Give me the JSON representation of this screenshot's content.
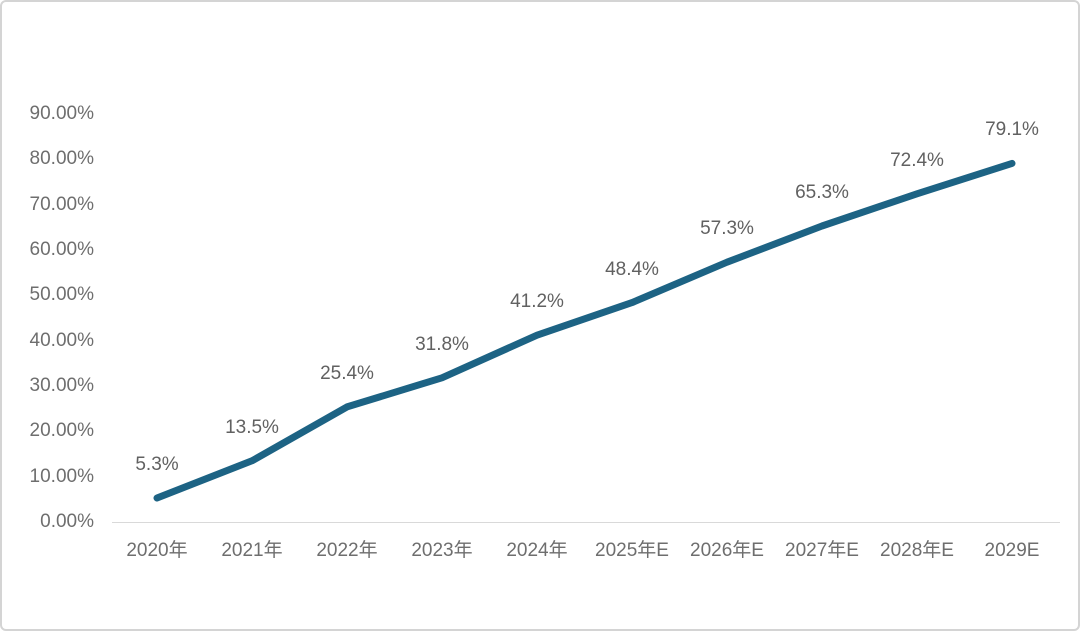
{
  "chart": {
    "line_color": "#1d6384",
    "axis_line_color": "#d9d9d9",
    "tick_text_color": "#6e6e6e",
    "data_label_color": "#616161",
    "canvas_border_color": "#d4d4d4",
    "background_color": "#ffffff"
  },
  "chart_data": {
    "type": "line",
    "title": "",
    "xlabel": "",
    "ylabel": "",
    "categories": [
      "2020年",
      "2021年",
      "2022年",
      "2023年",
      "2024年",
      "2025年E",
      "2026年E",
      "2027年E",
      "2028年E",
      "2029E"
    ],
    "values": [
      5.3,
      13.5,
      25.4,
      31.8,
      41.2,
      48.4,
      57.3,
      65.3,
      72.4,
      79.1
    ],
    "data_labels": [
      "5.3%",
      "13.5%",
      "25.4%",
      "31.8%",
      "41.2%",
      "48.4%",
      "57.3%",
      "65.3%",
      "72.4%",
      "79.1%"
    ],
    "y_ticks": [
      "0.00%",
      "10.00%",
      "20.00%",
      "30.00%",
      "40.00%",
      "50.00%",
      "60.00%",
      "70.00%",
      "80.00%",
      "90.00%"
    ],
    "ylim": [
      0,
      90
    ],
    "y_tick_step": 10,
    "grid": false,
    "legend": "none",
    "line_style": "solid",
    "markers": false
  }
}
